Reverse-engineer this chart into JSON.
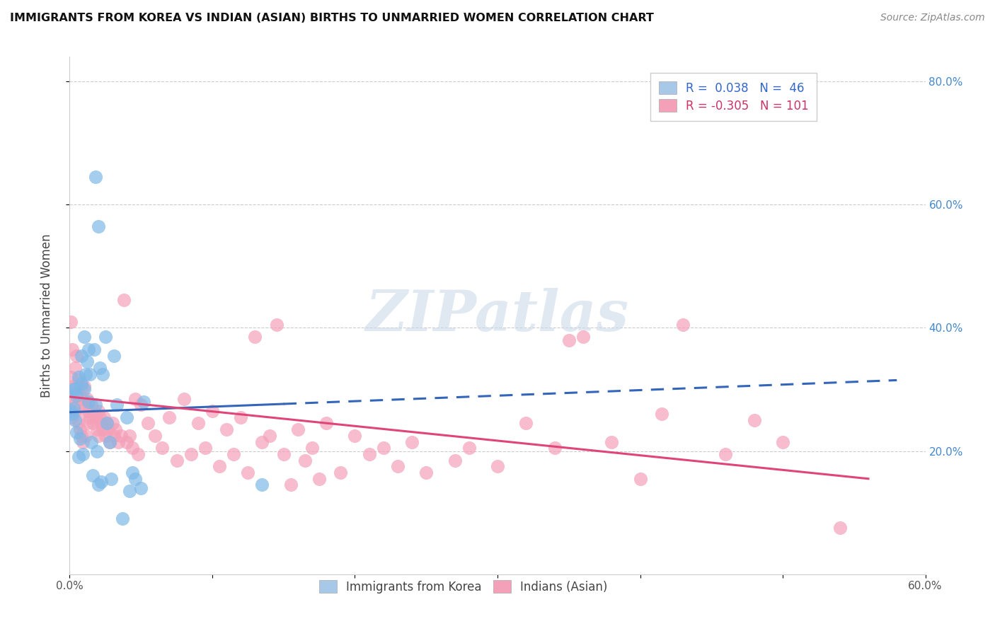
{
  "title": "IMMIGRANTS FROM KOREA VS INDIAN (ASIAN) BIRTHS TO UNMARRIED WOMEN CORRELATION CHART",
  "source": "Source: ZipAtlas.com",
  "ylabel": "Births to Unmarried Women",
  "xlim": [
    0.0,
    0.6
  ],
  "ylim": [
    0.0,
    0.84
  ],
  "korea_color": "#7eb8e8",
  "india_color": "#f4a0b8",
  "korea_line_color": "#3366bb",
  "india_line_color": "#e0457a",
  "watermark": "ZIPatlas",
  "korea_R": 0.038,
  "korea_N": 46,
  "india_R": -0.305,
  "india_N": 101,
  "korea_line_x0": 0.0,
  "korea_line_y0": 0.263,
  "korea_line_x_solid_end": 0.15,
  "korea_line_x_dash_end": 0.58,
  "korea_line_y_dash_end": 0.315,
  "india_line_x0": 0.0,
  "india_line_y0": 0.288,
  "india_line_x1": 0.56,
  "india_line_y1": 0.155,
  "korea_points": [
    [
      0.001,
      0.265
    ],
    [
      0.002,
      0.26
    ],
    [
      0.003,
      0.27
    ],
    [
      0.003,
      0.3
    ],
    [
      0.004,
      0.3
    ],
    [
      0.004,
      0.25
    ],
    [
      0.005,
      0.29
    ],
    [
      0.005,
      0.23
    ],
    [
      0.006,
      0.32
    ],
    [
      0.006,
      0.19
    ],
    [
      0.007,
      0.22
    ],
    [
      0.008,
      0.355
    ],
    [
      0.008,
      0.31
    ],
    [
      0.009,
      0.195
    ],
    [
      0.01,
      0.3
    ],
    [
      0.01,
      0.385
    ],
    [
      0.011,
      0.325
    ],
    [
      0.012,
      0.345
    ],
    [
      0.013,
      0.28
    ],
    [
      0.013,
      0.365
    ],
    [
      0.014,
      0.325
    ],
    [
      0.015,
      0.215
    ],
    [
      0.016,
      0.16
    ],
    [
      0.017,
      0.365
    ],
    [
      0.018,
      0.275
    ],
    [
      0.019,
      0.2
    ],
    [
      0.02,
      0.145
    ],
    [
      0.021,
      0.335
    ],
    [
      0.022,
      0.15
    ],
    [
      0.023,
      0.325
    ],
    [
      0.025,
      0.385
    ],
    [
      0.026,
      0.245
    ],
    [
      0.028,
      0.215
    ],
    [
      0.029,
      0.155
    ],
    [
      0.031,
      0.355
    ],
    [
      0.033,
      0.275
    ],
    [
      0.037,
      0.09
    ],
    [
      0.04,
      0.255
    ],
    [
      0.042,
      0.135
    ],
    [
      0.044,
      0.165
    ],
    [
      0.046,
      0.155
    ],
    [
      0.05,
      0.14
    ],
    [
      0.052,
      0.28
    ],
    [
      0.135,
      0.145
    ],
    [
      0.018,
      0.645
    ],
    [
      0.02,
      0.565
    ]
  ],
  "india_points": [
    [
      0.001,
      0.41
    ],
    [
      0.001,
      0.32
    ],
    [
      0.002,
      0.365
    ],
    [
      0.002,
      0.285
    ],
    [
      0.002,
      0.255
    ],
    [
      0.003,
      0.305
    ],
    [
      0.003,
      0.275
    ],
    [
      0.004,
      0.335
    ],
    [
      0.004,
      0.265
    ],
    [
      0.005,
      0.355
    ],
    [
      0.005,
      0.295
    ],
    [
      0.006,
      0.315
    ],
    [
      0.006,
      0.245
    ],
    [
      0.007,
      0.285
    ],
    [
      0.007,
      0.235
    ],
    [
      0.008,
      0.305
    ],
    [
      0.008,
      0.225
    ],
    [
      0.009,
      0.285
    ],
    [
      0.009,
      0.215
    ],
    [
      0.01,
      0.305
    ],
    [
      0.01,
      0.265
    ],
    [
      0.011,
      0.275
    ],
    [
      0.011,
      0.225
    ],
    [
      0.012,
      0.285
    ],
    [
      0.012,
      0.245
    ],
    [
      0.013,
      0.265
    ],
    [
      0.014,
      0.255
    ],
    [
      0.015,
      0.275
    ],
    [
      0.016,
      0.245
    ],
    [
      0.017,
      0.265
    ],
    [
      0.018,
      0.255
    ],
    [
      0.019,
      0.235
    ],
    [
      0.02,
      0.265
    ],
    [
      0.02,
      0.225
    ],
    [
      0.021,
      0.255
    ],
    [
      0.022,
      0.245
    ],
    [
      0.023,
      0.235
    ],
    [
      0.024,
      0.255
    ],
    [
      0.025,
      0.225
    ],
    [
      0.026,
      0.245
    ],
    [
      0.027,
      0.235
    ],
    [
      0.028,
      0.215
    ],
    [
      0.03,
      0.245
    ],
    [
      0.031,
      0.225
    ],
    [
      0.032,
      0.235
    ],
    [
      0.034,
      0.215
    ],
    [
      0.036,
      0.225
    ],
    [
      0.038,
      0.445
    ],
    [
      0.04,
      0.215
    ],
    [
      0.042,
      0.225
    ],
    [
      0.044,
      0.205
    ],
    [
      0.046,
      0.285
    ],
    [
      0.048,
      0.195
    ],
    [
      0.05,
      0.275
    ],
    [
      0.055,
      0.245
    ],
    [
      0.06,
      0.225
    ],
    [
      0.065,
      0.205
    ],
    [
      0.07,
      0.255
    ],
    [
      0.075,
      0.185
    ],
    [
      0.08,
      0.285
    ],
    [
      0.085,
      0.195
    ],
    [
      0.09,
      0.245
    ],
    [
      0.095,
      0.205
    ],
    [
      0.1,
      0.265
    ],
    [
      0.105,
      0.175
    ],
    [
      0.11,
      0.235
    ],
    [
      0.115,
      0.195
    ],
    [
      0.12,
      0.255
    ],
    [
      0.125,
      0.165
    ],
    [
      0.13,
      0.385
    ],
    [
      0.135,
      0.215
    ],
    [
      0.14,
      0.225
    ],
    [
      0.145,
      0.405
    ],
    [
      0.15,
      0.195
    ],
    [
      0.155,
      0.145
    ],
    [
      0.16,
      0.235
    ],
    [
      0.165,
      0.185
    ],
    [
      0.17,
      0.205
    ],
    [
      0.175,
      0.155
    ],
    [
      0.18,
      0.245
    ],
    [
      0.19,
      0.165
    ],
    [
      0.2,
      0.225
    ],
    [
      0.21,
      0.195
    ],
    [
      0.22,
      0.205
    ],
    [
      0.23,
      0.175
    ],
    [
      0.24,
      0.215
    ],
    [
      0.25,
      0.165
    ],
    [
      0.27,
      0.185
    ],
    [
      0.28,
      0.205
    ],
    [
      0.3,
      0.175
    ],
    [
      0.32,
      0.245
    ],
    [
      0.34,
      0.205
    ],
    [
      0.36,
      0.385
    ],
    [
      0.38,
      0.215
    ],
    [
      0.4,
      0.155
    ],
    [
      0.43,
      0.405
    ],
    [
      0.46,
      0.195
    ],
    [
      0.5,
      0.215
    ],
    [
      0.54,
      0.075
    ],
    [
      0.35,
      0.38
    ],
    [
      0.48,
      0.25
    ],
    [
      0.415,
      0.26
    ]
  ]
}
